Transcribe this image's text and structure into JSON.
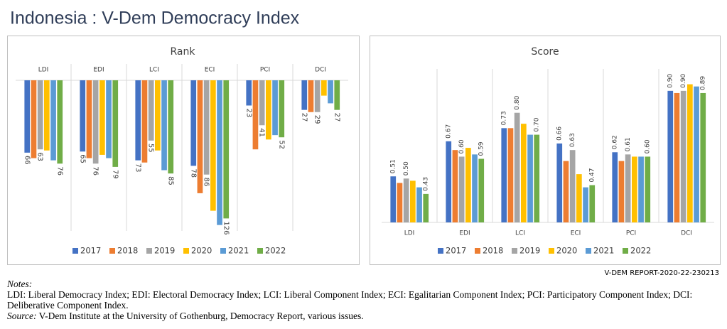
{
  "title": "Indonesia : V-Dem Democracy Index",
  "report_id": "V-DEM REPORT-2020-22-230213",
  "notes": {
    "heading": "Notes:",
    "text": "LDI: Liberal Democracy Index; EDI: Electoral Democracy Index; LCI: Liberal Component Index; ECI: Egalitarian  Component Index; PCI: Participatory Component Index; DCI: Deliberative Component Index.",
    "source_label": "Source:",
    "source": "V-Dem Institute at the University of Gothenburg, Democracy Report, various issues."
  },
  "chart_data": [
    {
      "type": "bar",
      "title": "Rank",
      "y_inverted": true,
      "category_labels_position": "top",
      "categories": [
        "LDI",
        "EDI",
        "LCI",
        "ECI",
        "PCI",
        "DCI"
      ],
      "ylim": [
        0,
        140
      ],
      "series": [
        {
          "name": "2017",
          "color": "#4472c4",
          "values": [
            66,
            65,
            73,
            78,
            23,
            27
          ],
          "value_labels": [
            "66",
            "65",
            "73",
            "78",
            "23",
            "27"
          ]
        },
        {
          "name": "2018",
          "color": "#ed7d31",
          "values": [
            71,
            71,
            75,
            103,
            63,
            29
          ],
          "value_labels": [
            null,
            null,
            null,
            null,
            null,
            null
          ]
        },
        {
          "name": "2019",
          "color": "#a5a5a5",
          "values": [
            63,
            76,
            55,
            86,
            41,
            29
          ],
          "value_labels": [
            "63",
            "76",
            "55",
            "86",
            "41",
            "29"
          ]
        },
        {
          "name": "2020",
          "color": "#ffc000",
          "values": [
            64,
            68,
            64,
            119,
            54,
            14
          ],
          "value_labels": [
            null,
            null,
            null,
            null,
            null,
            null
          ]
        },
        {
          "name": "2021",
          "color": "#5b9bd5",
          "values": [
            73,
            71,
            82,
            132,
            50,
            21
          ],
          "value_labels": [
            null,
            null,
            null,
            null,
            null,
            null
          ]
        },
        {
          "name": "2022",
          "color": "#70ad47",
          "values": [
            76,
            79,
            85,
            126,
            52,
            27
          ],
          "value_labels": [
            "76",
            "79",
            "85",
            "126",
            "52",
            "27"
          ]
        }
      ]
    },
    {
      "type": "bar",
      "title": "Score",
      "y_inverted": false,
      "category_labels_position": "bottom",
      "categories": [
        "LDI",
        "EDI",
        "LCI",
        "ECI",
        "PCI",
        "DCI"
      ],
      "ylim": [
        0.3,
        1.0
      ],
      "series": [
        {
          "name": "2017",
          "color": "#4472c4",
          "values": [
            0.51,
            0.67,
            0.73,
            0.66,
            0.62,
            0.9
          ],
          "value_labels": [
            "0.51",
            "0.67",
            "0.73",
            "0.66",
            "0.62",
            "0.90"
          ]
        },
        {
          "name": "2018",
          "color": "#ed7d31",
          "values": [
            0.48,
            0.63,
            0.73,
            0.58,
            0.58,
            0.89
          ],
          "value_labels": [
            null,
            null,
            null,
            null,
            null,
            null
          ]
        },
        {
          "name": "2019",
          "color": "#a5a5a5",
          "values": [
            0.5,
            0.6,
            0.8,
            0.63,
            0.61,
            0.9
          ],
          "value_labels": [
            "0.50",
            "0.60",
            "0.80",
            "0.63",
            "0.61",
            "0.90"
          ]
        },
        {
          "name": "2020",
          "color": "#ffc000",
          "values": [
            0.49,
            0.64,
            0.75,
            0.52,
            0.6,
            0.93
          ],
          "value_labels": [
            null,
            null,
            null,
            null,
            null,
            null
          ]
        },
        {
          "name": "2021",
          "color": "#5b9bd5",
          "values": [
            0.46,
            0.61,
            0.7,
            0.46,
            0.6,
            0.92
          ],
          "value_labels": [
            null,
            null,
            null,
            null,
            null,
            null
          ]
        },
        {
          "name": "2022",
          "color": "#70ad47",
          "values": [
            0.43,
            0.59,
            0.7,
            0.47,
            0.6,
            0.89
          ],
          "value_labels": [
            "0.43",
            "0.59",
            "0.70",
            "0.47",
            "0.60",
            "0.89"
          ]
        }
      ]
    }
  ]
}
